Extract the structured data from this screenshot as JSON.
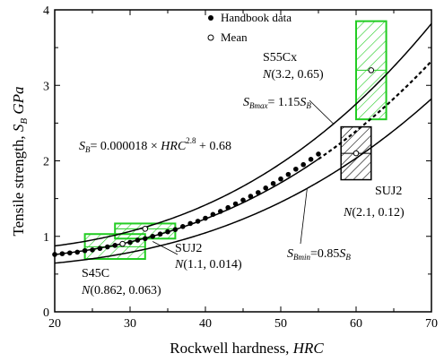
{
  "chart_data": {
    "type": "scatter",
    "xlabel": "Rockwell hardness,",
    "xlabel_symbol": "HRC",
    "ylabel": "Tensile strength,",
    "ylabel_symbol": "S",
    "ylabel_subscript": "B",
    "ylabel_unit": "GPa",
    "xlim": [
      20,
      70
    ],
    "ylim": [
      0,
      4
    ],
    "xticks": [
      20,
      30,
      40,
      50,
      60,
      70
    ],
    "yticks": [
      0,
      1,
      2,
      3,
      4
    ],
    "legend": {
      "position": "top-center",
      "entries": [
        {
          "marker": "filled-circle",
          "label": "Handbook data"
        },
        {
          "marker": "open-circle",
          "label": "Mean"
        }
      ]
    },
    "formula": {
      "lhs_symbol": "S",
      "lhs_sub": "B",
      "body": "= 0.000018 × ",
      "var": "HRC",
      "exponent": "2.8",
      "tail": " + 0.68",
      "coefficient": 1.8e-05,
      "power": 2.8,
      "constant": 0.68
    },
    "bounds": [
      {
        "name_symbol": "S",
        "name_sub": "Bmax",
        "text": "= 1.15",
        "rhs_symbol": "S",
        "rhs_sub": "B",
        "factor": 1.15
      },
      {
        "name_symbol": "S",
        "name_sub": "Bmin",
        "text": "=0.85",
        "rhs_symbol": "S",
        "rhs_sub": "B",
        "factor": 0.85
      }
    ],
    "series": [
      {
        "name": "Handbook data",
        "marker": "filled-circle",
        "x": [
          20,
          21,
          22,
          23,
          24,
          25,
          26,
          27,
          28,
          29,
          30,
          31,
          32,
          33,
          34,
          35,
          36,
          37,
          38,
          39,
          40,
          41,
          42,
          43,
          44,
          45,
          46,
          47,
          48,
          49,
          50,
          51,
          52,
          53,
          54,
          55
        ],
        "y": [
          0.76,
          0.77,
          0.78,
          0.79,
          0.81,
          0.82,
          0.84,
          0.86,
          0.88,
          0.9,
          0.92,
          0.95,
          0.97,
          1.0,
          1.03,
          1.06,
          1.09,
          1.13,
          1.17,
          1.2,
          1.24,
          1.29,
          1.33,
          1.38,
          1.43,
          1.48,
          1.53,
          1.58,
          1.64,
          1.7,
          1.76,
          1.82,
          1.89,
          1.95,
          2.02,
          2.09
        ]
      }
    ],
    "groups": [
      {
        "name": "S45C",
        "dist_n": "N",
        "dist_params": "(0.862, 0.063)",
        "hrc_range": [
          24,
          32
        ],
        "y_range": [
          0.7,
          1.03
        ],
        "mean": 0.862,
        "sd": 0.063,
        "color": "#22cc22",
        "hatch": "green"
      },
      {
        "name": "SUJ2",
        "dist_n": "N",
        "dist_params": "(1.1, 0.014)",
        "hrc_range": [
          28,
          36
        ],
        "y_range": [
          0.97,
          1.17
        ],
        "mean": 1.1,
        "sd": 0.014,
        "color": "#22cc22",
        "hatch": "green"
      },
      {
        "name": "S55Cx",
        "dist_n": "N",
        "dist_params": "(3.2, 0.65)",
        "hrc_range": [
          60,
          64
        ],
        "y_range": [
          2.55,
          3.85
        ],
        "mean": 3.2,
        "sd": 0.65,
        "color": "#22cc22",
        "hatch": "green"
      },
      {
        "name": "SUJ2",
        "dist_n": "N",
        "dist_params": "(2.1, 0.12)",
        "hrc_range": [
          58,
          62
        ],
        "y_range": [
          1.75,
          2.45
        ],
        "mean": 2.1,
        "sd": 0.12,
        "color": "#000000",
        "hatch": "black"
      }
    ],
    "mean_points": [
      {
        "x": 29,
        "y": 0.9
      },
      {
        "x": 32,
        "y": 1.1
      },
      {
        "x": 62,
        "y": 3.2
      },
      {
        "x": 60,
        "y": 2.1
      }
    ]
  }
}
